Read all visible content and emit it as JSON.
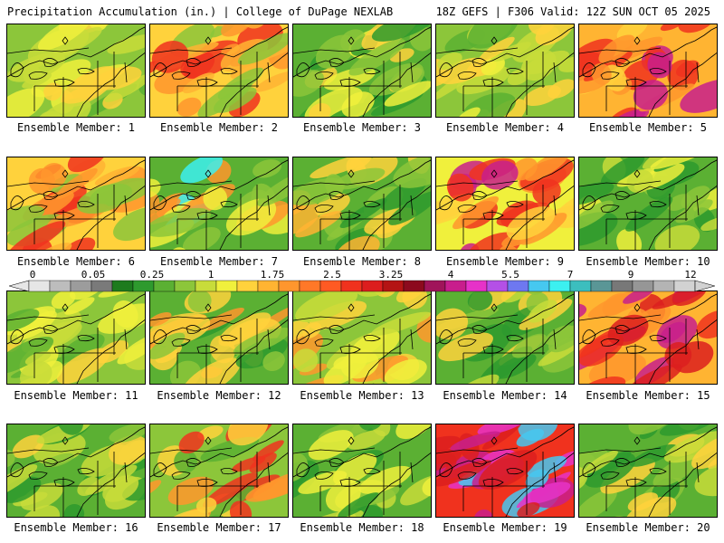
{
  "header": {
    "left": "Precipitation Accumulation (in.) | College of DuPage NEXLAB",
    "right": "18Z GEFS | F306 Valid: 12Z SUN OCT 05 2025"
  },
  "colors": {
    "background": "#ffffff",
    "border": "#000000"
  },
  "colorbar": {
    "labels": [
      "0",
      "0.05",
      "0.25",
      "1",
      "1.75",
      "2.5",
      "3.25",
      "4",
      "5.5",
      "7",
      "9",
      "12"
    ],
    "swatches": [
      "#e6e6e6",
      "#bdbdbd",
      "#9c9c9c",
      "#7a7a7a",
      "#1e7b1e",
      "#2e9a2e",
      "#5bb033",
      "#8cc63a",
      "#c8dc3a",
      "#f0f03c",
      "#ffd23c",
      "#ffb432",
      "#ff962d",
      "#ff7828",
      "#ff5a23",
      "#f0321e",
      "#dc1e1e",
      "#b41414",
      "#8c0a1e",
      "#a0145a",
      "#c81e8c",
      "#e632c8",
      "#b450e6",
      "#6e78f0",
      "#46c8f0",
      "#3cf0f0",
      "#3cbebe",
      "#5a9696",
      "#787878",
      "#969696",
      "#b4b4b4",
      "#d2d2d2"
    ]
  },
  "panels": [
    {
      "label": "Ensemble Member: 1",
      "palette": [
        "#8cc63a",
        "#c8dc3a",
        "#f0f03c",
        "#ffd23c",
        "#5bb033"
      ]
    },
    {
      "label": "Ensemble Member: 2",
      "palette": [
        "#ffd23c",
        "#ffb432",
        "#ff962d",
        "#f0321e",
        "#8cc63a"
      ]
    },
    {
      "label": "Ensemble Member: 3",
      "palette": [
        "#5bb033",
        "#8cc63a",
        "#f0f03c",
        "#ffd23c",
        "#2e9a2e"
      ]
    },
    {
      "label": "Ensemble Member: 4",
      "palette": [
        "#8cc63a",
        "#c8dc3a",
        "#f0f03c",
        "#5bb033",
        "#ffd23c"
      ]
    },
    {
      "label": "Ensemble Member: 5",
      "palette": [
        "#ffb432",
        "#ff962d",
        "#f0321e",
        "#ffd23c",
        "#c81e8c"
      ]
    },
    {
      "label": "Ensemble Member: 6",
      "palette": [
        "#ffd23c",
        "#ffb432",
        "#ff962d",
        "#f0321e",
        "#8cc63a"
      ]
    },
    {
      "label": "Ensemble Member: 7",
      "palette": [
        "#5bb033",
        "#8cc63a",
        "#f0f03c",
        "#ff962d",
        "#3cf0f0"
      ]
    },
    {
      "label": "Ensemble Member: 8",
      "palette": [
        "#5bb033",
        "#8cc63a",
        "#ffd23c",
        "#ffb432",
        "#2e9a2e"
      ]
    },
    {
      "label": "Ensemble Member: 9",
      "palette": [
        "#f0f03c",
        "#ffd23c",
        "#ff962d",
        "#f0321e",
        "#c81e8c"
      ]
    },
    {
      "label": "Ensemble Member: 10",
      "palette": [
        "#5bb033",
        "#8cc63a",
        "#c8dc3a",
        "#f0f03c",
        "#2e9a2e"
      ]
    },
    {
      "label": "Ensemble Member: 11",
      "palette": [
        "#8cc63a",
        "#c8dc3a",
        "#5bb033",
        "#f0f03c",
        "#ffd23c"
      ]
    },
    {
      "label": "Ensemble Member: 12",
      "palette": [
        "#5bb033",
        "#8cc63a",
        "#ffd23c",
        "#ff962d",
        "#2e9a2e"
      ]
    },
    {
      "label": "Ensemble Member: 13",
      "palette": [
        "#8cc63a",
        "#c8dc3a",
        "#f0f03c",
        "#ffd23c",
        "#ff962d"
      ]
    },
    {
      "label": "Ensemble Member: 14",
      "palette": [
        "#5bb033",
        "#8cc63a",
        "#c8dc3a",
        "#ffd23c",
        "#2e9a2e"
      ]
    },
    {
      "label": "Ensemble Member: 15",
      "palette": [
        "#ffb432",
        "#ff962d",
        "#f0321e",
        "#dc1e1e",
        "#c81e8c"
      ]
    },
    {
      "label": "Ensemble Member: 16",
      "palette": [
        "#5bb033",
        "#8cc63a",
        "#c8dc3a",
        "#ffd23c",
        "#2e9a2e"
      ]
    },
    {
      "label": "Ensemble Member: 17",
      "palette": [
        "#8cc63a",
        "#ffd23c",
        "#ff962d",
        "#f0321e",
        "#5bb033"
      ]
    },
    {
      "label": "Ensemble Member: 18",
      "palette": [
        "#5bb033",
        "#2e9a2e",
        "#8cc63a",
        "#c8dc3a",
        "#f0f03c"
      ]
    },
    {
      "label": "Ensemble Member: 19",
      "palette": [
        "#f0321e",
        "#dc1e1e",
        "#c81e8c",
        "#e632c8",
        "#46c8f0"
      ]
    },
    {
      "label": "Ensemble Member: 20",
      "palette": [
        "#5bb033",
        "#8cc63a",
        "#c8dc3a",
        "#ffd23c",
        "#2e9a2e"
      ]
    }
  ]
}
